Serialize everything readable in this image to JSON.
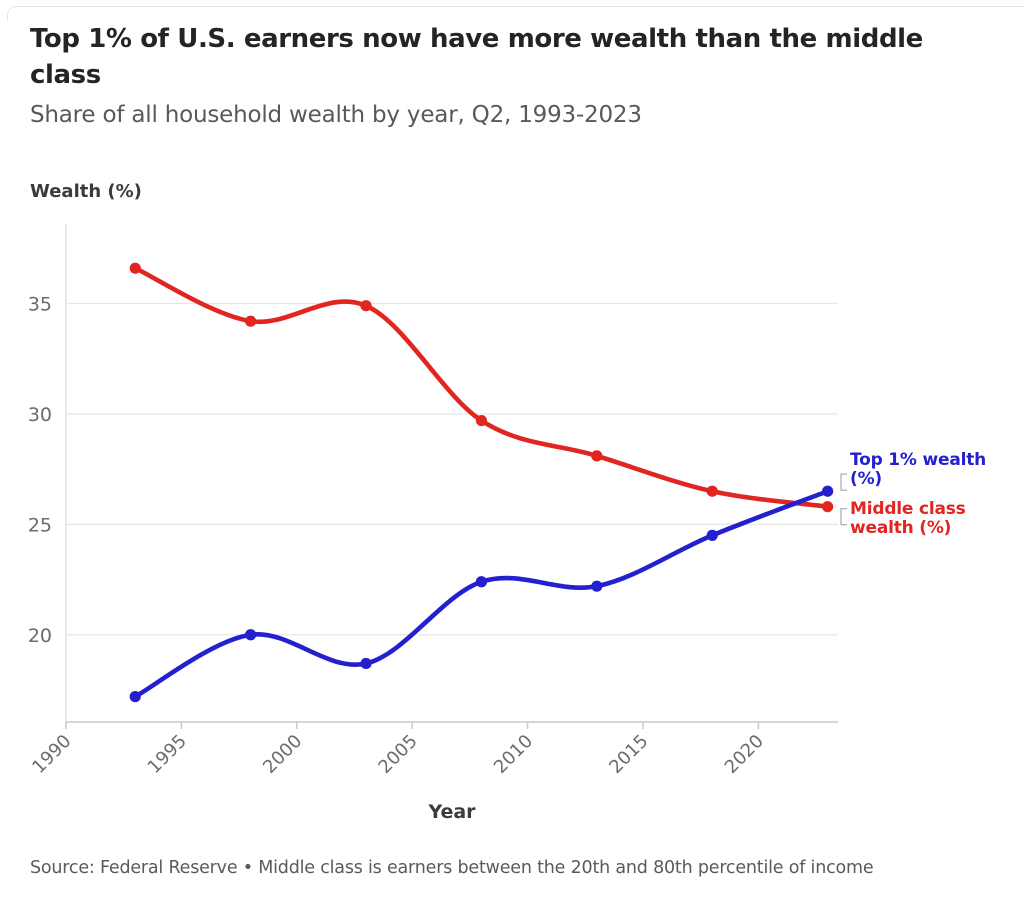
{
  "header": {
    "title": "Top 1% of U.S. earners now have more wealth than the middle class",
    "subtitle": "Share of all household wealth by year, Q2, 1993-2023"
  },
  "chart_data": {
    "type": "line",
    "title": "Top 1% of U.S. earners now have more wealth than the middle class",
    "subtitle": "Share of all household wealth by year, Q2, 1993-2023",
    "xlabel": "Year",
    "ylabel": "Wealth (%)",
    "x": [
      1993,
      1998,
      2003,
      2008,
      2013,
      2018,
      2023
    ],
    "series": [
      {
        "name": "Middle class wealth (%)",
        "color": "#e12622",
        "values": [
          36.6,
          34.2,
          34.9,
          29.7,
          28.1,
          26.5,
          25.8
        ]
      },
      {
        "name": "Top 1% wealth (%)",
        "color": "#2420cf",
        "values": [
          17.2,
          20.0,
          18.7,
          22.4,
          22.2,
          24.5,
          26.5
        ]
      }
    ],
    "x_ticks": [
      1990,
      1995,
      2000,
      2005,
      2010,
      2015,
      2020
    ],
    "y_ticks": [
      20,
      25,
      30,
      35
    ],
    "xlim": [
      1990,
      2023.45
    ],
    "ylim": [
      16.05,
      38.6
    ],
    "grid": true,
    "legend_position": "right",
    "grid_color": "#e7e7e7",
    "axis_color": "#c9c9c9",
    "tick_label_color": "#6b6b6b",
    "bracket_color": "#b5b5b5"
  },
  "footer": {
    "source": "Source: Federal Reserve • Middle class is earners between the 20th and 80th percentile of income"
  }
}
